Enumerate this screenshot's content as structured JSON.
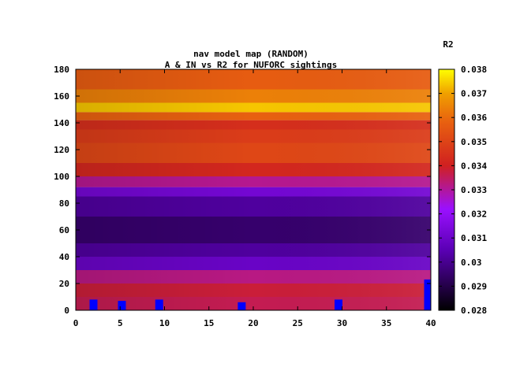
{
  "chart_data": {
    "type": "heatmap",
    "title": "nav model map (RANDOM)",
    "subtitle": "A & IN vs R2 for NUFORC sightings",
    "xlabel": "",
    "ylabel": "",
    "xlim": [
      0,
      40
    ],
    "ylim": [
      0,
      180
    ],
    "x_ticks": [
      "0",
      "5",
      "10",
      "15",
      "20",
      "25",
      "30",
      "35",
      "40"
    ],
    "y_ticks": [
      "0",
      "20",
      "40",
      "60",
      "80",
      "100",
      "120",
      "140",
      "160",
      "180"
    ],
    "colorbar": {
      "label": "R2",
      "min": 0.028,
      "max": 0.038,
      "ticks": [
        "0.028",
        "0.029",
        "0.03",
        "0.031",
        "0.032",
        "0.033",
        "0.034",
        "0.035",
        "0.036",
        "0.037",
        "0.038"
      ]
    },
    "bands": [
      {
        "y0": 0,
        "y1": 10,
        "value": 0.0336
      },
      {
        "y0": 10,
        "y1": 20,
        "value": 0.0338
      },
      {
        "y0": 20,
        "y1": 30,
        "value": 0.0332
      },
      {
        "y0": 30,
        "y1": 40,
        "value": 0.0309
      },
      {
        "y0": 40,
        "y1": 50,
        "value": 0.0302
      },
      {
        "y0": 50,
        "y1": 70,
        "value": 0.0295
      },
      {
        "y0": 70,
        "y1": 85,
        "value": 0.0302
      },
      {
        "y0": 85,
        "y1": 92,
        "value": 0.0312
      },
      {
        "y0": 92,
        "y1": 100,
        "value": 0.0331
      },
      {
        "y0": 100,
        "y1": 110,
        "value": 0.0342
      },
      {
        "y0": 110,
        "y1": 125,
        "value": 0.0351
      },
      {
        "y0": 125,
        "y1": 135,
        "value": 0.0348
      },
      {
        "y0": 135,
        "y1": 142,
        "value": 0.0344
      },
      {
        "y0": 142,
        "y1": 148,
        "value": 0.0358
      },
      {
        "y0": 148,
        "y1": 155,
        "value": 0.0374
      },
      {
        "y0": 155,
        "y1": 165,
        "value": 0.0364
      },
      {
        "y0": 165,
        "y1": 180,
        "value": 0.0357
      }
    ],
    "markers": [
      {
        "x": 2,
        "y0": 0,
        "y1": 8
      },
      {
        "x": 5.2,
        "y0": 0,
        "y1": 7
      },
      {
        "x": 9.4,
        "y0": 0,
        "y1": 8
      },
      {
        "x": 18.7,
        "y0": 0,
        "y1": 6
      },
      {
        "x": 29.6,
        "y0": 0,
        "y1": 8
      },
      {
        "x": 39.6,
        "y0": 0,
        "y1": 23
      }
    ],
    "marker_color": "#0000ff"
  }
}
